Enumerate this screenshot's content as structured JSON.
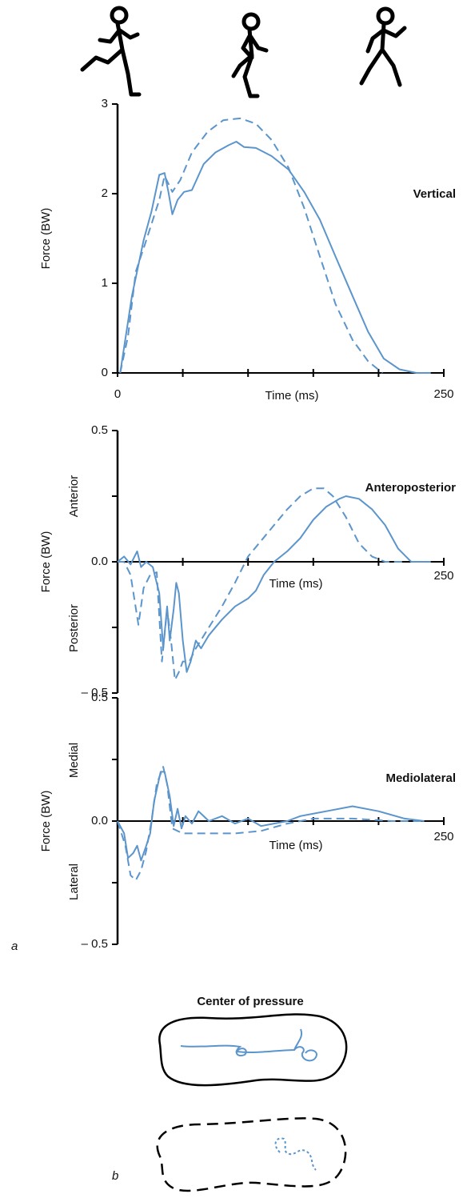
{
  "figure": {
    "panel_a": "a",
    "panel_b": "b",
    "cop_title": "Center of pressure"
  },
  "chart_data": [
    {
      "type": "line",
      "title": "Vertical",
      "ylabel": "Force (BW)",
      "xlabel": "Time (ms)",
      "xlim": [
        0,
        250
      ],
      "ylim": [
        0,
        3
      ],
      "xticks": [
        0,
        {
          "value": 50,
          "label": null
        },
        {
          "value": 100,
          "label": null
        },
        {
          "value": 150,
          "label": null
        },
        {
          "value": 200,
          "label": null
        },
        250
      ],
      "yticks": [
        0,
        1,
        2,
        3
      ],
      "series": [
        {
          "style": "solid",
          "color": "#5b95cc",
          "x": [
            2,
            11,
            20,
            26,
            32,
            36,
            39,
            42,
            46,
            51,
            57,
            66,
            75,
            85,
            91,
            97,
            106,
            118,
            131,
            143,
            155,
            167,
            180,
            192,
            204,
            216,
            229,
            240
          ],
          "values": [
            0,
            0.86,
            1.48,
            1.8,
            2.21,
            2.23,
            2.02,
            1.77,
            1.93,
            2.02,
            2.04,
            2.33,
            2.46,
            2.54,
            2.58,
            2.52,
            2.51,
            2.42,
            2.27,
            2.02,
            1.71,
            1.3,
            0.86,
            0.46,
            0.16,
            0.04,
            0,
            0
          ]
        },
        {
          "style": "dashed",
          "color": "#5b95cc",
          "x": [
            2,
            8,
            14,
            20,
            26,
            32,
            36,
            42,
            48,
            57,
            69,
            81,
            94,
            106,
            118,
            131,
            143,
            155,
            167,
            180,
            192,
            203
          ],
          "values": [
            0,
            0.41,
            1.13,
            1.39,
            1.66,
            1.93,
            2.2,
            2.02,
            2.15,
            2.46,
            2.69,
            2.82,
            2.84,
            2.78,
            2.6,
            2.29,
            1.84,
            1.3,
            0.77,
            0.37,
            0.13,
            0
          ]
        }
      ]
    },
    {
      "type": "line",
      "title": "Anteroposterior",
      "ylabel": "Force (BW)",
      "xlabel": "Time (ms)",
      "annotations": [
        "Anterior",
        "Posterior"
      ],
      "xlim": [
        0,
        250
      ],
      "ylim": [
        -0.5,
        0.5
      ],
      "xticks": [
        {
          "value": 50,
          "label": null
        },
        {
          "value": 100,
          "label": null
        },
        {
          "value": 150,
          "label": null
        },
        {
          "value": 200,
          "label": null
        },
        250
      ],
      "yticks": [
        {
          "value": -0.5,
          "label": "– 0.5"
        },
        {
          "value": -0.25,
          "label": null
        },
        {
          "value": 0,
          "label": "0.0"
        },
        {
          "value": 0.25,
          "label": null
        },
        0.5
      ],
      "series": [
        {
          "style": "solid",
          "color": "#5b95cc",
          "x": [
            0,
            5,
            10,
            15,
            18,
            22,
            27,
            32,
            35,
            38,
            40,
            43,
            45,
            47,
            50,
            53,
            56,
            60,
            64,
            70,
            80,
            90,
            100,
            106,
            112,
            120,
            130,
            140,
            150,
            160,
            170,
            175,
            185,
            195,
            205,
            215,
            225,
            240
          ],
          "values": [
            0,
            0.02,
            -0.01,
            0.04,
            -0.02,
            0,
            -0.02,
            -0.12,
            -0.33,
            -0.17,
            -0.3,
            -0.18,
            -0.08,
            -0.12,
            -0.3,
            -0.42,
            -0.38,
            -0.3,
            -0.33,
            -0.28,
            -0.22,
            -0.17,
            -0.14,
            -0.11,
            -0.05,
            0,
            0.04,
            0.09,
            0.16,
            0.21,
            0.24,
            0.25,
            0.24,
            0.2,
            0.14,
            0.05,
            0,
            0
          ]
        },
        {
          "style": "dashed",
          "color": "#5b95cc",
          "x": [
            0,
            5,
            10,
            16,
            20,
            25,
            30,
            34,
            38,
            41,
            44,
            47,
            50,
            55,
            60,
            70,
            80,
            90,
            100,
            110,
            120,
            130,
            140,
            150,
            158,
            165,
            175,
            185,
            195,
            205,
            220
          ],
          "values": [
            0,
            0,
            -0.05,
            -0.24,
            -0.1,
            -0.05,
            -0.04,
            -0.38,
            -0.18,
            -0.3,
            -0.45,
            -0.42,
            -0.38,
            -0.38,
            -0.33,
            -0.25,
            -0.17,
            -0.08,
            0.02,
            0.08,
            0.14,
            0.2,
            0.25,
            0.28,
            0.28,
            0.25,
            0.17,
            0.07,
            0.02,
            0,
            0
          ]
        }
      ]
    },
    {
      "type": "line",
      "title": "Mediolateral",
      "ylabel": "Force (BW)",
      "xlabel": "Time (ms)",
      "annotations": [
        "Medial",
        "Lateral"
      ],
      "xlim": [
        0,
        250
      ],
      "ylim": [
        -0.5,
        0.5
      ],
      "xticks": [
        {
          "value": 50,
          "label": null
        },
        {
          "value": 100,
          "label": null
        },
        {
          "value": 150,
          "label": null
        },
        {
          "value": 200,
          "label": null
        },
        250
      ],
      "yticks": [
        {
          "value": -0.5,
          "label": "– 0.5"
        },
        {
          "value": -0.25,
          "label": null
        },
        {
          "value": 0,
          "label": "0.0"
        },
        {
          "value": 0.25,
          "label": null
        },
        0.5
      ],
      "series": [
        {
          "style": "solid",
          "color": "#5b95cc",
          "x": [
            0,
            5,
            8,
            12,
            15,
            18,
            22,
            25,
            28,
            33,
            36,
            40,
            43,
            46,
            49,
            52,
            57,
            62,
            70,
            80,
            90,
            100,
            110,
            120,
            130,
            140,
            160,
            180,
            200,
            220,
            235
          ],
          "values": [
            0,
            -0.05,
            -0.15,
            -0.13,
            -0.1,
            -0.16,
            -0.1,
            -0.05,
            0.08,
            0.2,
            0.2,
            0.1,
            -0.02,
            0.05,
            -0.03,
            0.02,
            -0.01,
            0.04,
            0,
            0.02,
            -0.01,
            0.01,
            -0.02,
            -0.01,
            0,
            0.02,
            0.04,
            0.06,
            0.04,
            0.01,
            0
          ]
        },
        {
          "style": "dashed",
          "color": "#5b95cc",
          "x": [
            0,
            6,
            10,
            14,
            18,
            22,
            26,
            30,
            35,
            38,
            42,
            50,
            70,
            90,
            110,
            130,
            150,
            180,
            210,
            235
          ],
          "values": [
            0,
            -0.1,
            -0.22,
            -0.24,
            -0.2,
            -0.12,
            0,
            0.15,
            0.22,
            0.15,
            -0.03,
            -0.05,
            -0.05,
            -0.05,
            -0.04,
            -0.01,
            0.01,
            0.01,
            0,
            0
          ]
        }
      ]
    }
  ]
}
